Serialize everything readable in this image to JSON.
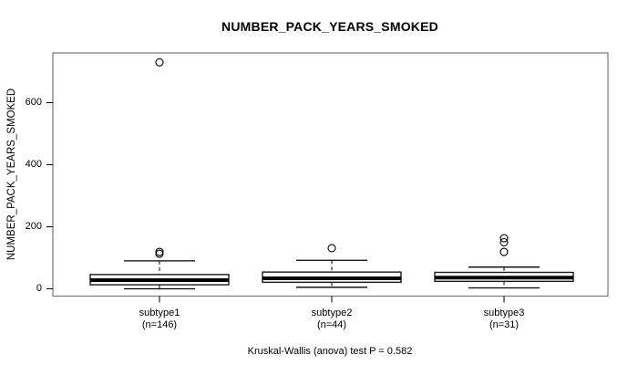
{
  "title": "NUMBER_PACK_YEARS_SMOKED",
  "footer": "Kruskal-Wallis (anova) test P = 0.582",
  "y_axis": {
    "label": "NUMBER_PACK_YEARS_SMOKED",
    "tick_labels": [
      "0",
      "200",
      "400",
      "600"
    ]
  },
  "colors": {
    "background": "#ffffff",
    "plot_border": "#777777",
    "box_stroke": "#1a1a1a",
    "median": "#000000",
    "text": "#000000"
  },
  "chart_data": {
    "type": "boxplot",
    "title": "NUMBER_PACK_YEARS_SMOKED",
    "ylabel": "NUMBER_PACK_YEARS_SMOKED",
    "xlabel": "",
    "ylim": [
      -25,
      760
    ],
    "y_ticks": [
      0,
      200,
      400,
      600
    ],
    "grid": false,
    "annotation": "Kruskal-Wallis (anova) test P = 0.582",
    "groups": [
      {
        "label": "subtype1",
        "n_label": "(n=146)",
        "n": 146,
        "whisker_low": 0,
        "q1": 13,
        "median": 28,
        "q3": 46,
        "whisker_high": 90,
        "outliers": [
          113,
          119,
          730
        ]
      },
      {
        "label": "subtype2",
        "n_label": "(n=44)",
        "n": 44,
        "whisker_low": 5,
        "q1": 21,
        "median": 34,
        "q3": 54,
        "whisker_high": 92,
        "outliers": [
          131
        ]
      },
      {
        "label": "subtype3",
        "n_label": "(n=31)",
        "n": 31,
        "whisker_low": 3,
        "q1": 24,
        "median": 36,
        "q3": 53,
        "whisker_high": 70,
        "outliers": [
          119,
          150,
          163
        ]
      }
    ]
  }
}
